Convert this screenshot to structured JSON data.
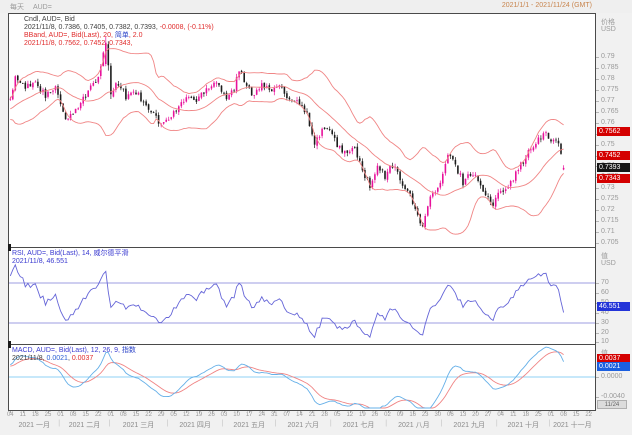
{
  "topbar": {
    "interval": "每天",
    "instrument": "AUD=",
    "date_range": "2021/1/1 - 2021/11/24 (GMT)"
  },
  "colors": {
    "up": "#e8119b",
    "down": "#1c1c1c",
    "band": "#f08585",
    "rsi_line": "#6666d8",
    "rsi_guide": "#9c9ce0",
    "macd_line": "#66b0e8",
    "macd_signal": "#f08585",
    "macd_zero": "#8fd2f5",
    "badge_red": "#d40000",
    "badge_black": "#161616",
    "badge_blue_rsi": "#2334d8",
    "badge_blue_macd": "#1b5fe0"
  },
  "panels": {
    "price": {
      "axis_header": {
        "l1": "价格",
        "l2": "USD"
      },
      "legend": [
        [
          {
            "t": "Cndl, AUD=, Bid",
            "c": "#3d3d3d"
          }
        ],
        [
          {
            "t": "2021/11/8, 0.7386, 0.7405, 0.7382, 0.7393, ",
            "c": "#3d3d3d"
          },
          {
            "t": "-0.0008, (-0.11%)",
            "c": "#e02b2b"
          }
        ],
        [
          {
            "t": "BBand, AUD=, Bid(Last), 20, ",
            "c": "#e02b2b"
          },
          {
            "t": "简单",
            "c": "#2b43c8"
          },
          {
            "t": ", 2.0",
            "c": "#e02b2b"
          }
        ],
        [
          {
            "t": "2021/11/8, 0.7562, 0.7452, 0.7343,",
            "c": "#e02b2b"
          }
        ]
      ],
      "ticks": [
        "0.79",
        "0.785",
        "0.78",
        "0.775",
        "0.77",
        "0.765",
        "0.76",
        "0.755",
        "0.75",
        "0.745",
        "0.74",
        "0.735",
        "0.73",
        "0.725",
        "0.72",
        "0.715",
        "0.71",
        "0.705"
      ],
      "badges": [
        {
          "label": "0.7562",
          "value": 0.7562,
          "bg": "#d40000",
          "name": "bband-upper-badge"
        },
        {
          "label": "0.7452",
          "value": 0.7452,
          "bg": "#d40000",
          "name": "bband-middle-badge"
        },
        {
          "label": "0.7393",
          "value": 0.7393,
          "bg": "#161616",
          "name": "last-price-badge"
        },
        {
          "label": "0.7343",
          "value": 0.7343,
          "bg": "#d40000",
          "name": "bband-lower-badge"
        }
      ]
    },
    "rsi": {
      "axis_header": {
        "l1": "值",
        "l2": "USD"
      },
      "legend": [
        [
          {
            "t": "RSI, AUD=, Bid(Last), 14, 威尔德平滑",
            "c": "#3a3ad0"
          }
        ],
        [
          {
            "t": "2021/11/8, 46.551",
            "c": "#3a3ad0"
          }
        ]
      ],
      "ticks": [
        "70",
        "60",
        "50",
        "40",
        "30",
        "20",
        "10"
      ],
      "guides": [
        70,
        30
      ],
      "badge": {
        "label": "46.551",
        "value": 46.551,
        "bg": "#2334d8",
        "name": "rsi-value-badge"
      }
    },
    "macd": {
      "axis_header": {
        "l1": "值",
        "l2": "USD"
      },
      "legend": [
        [
          {
            "t": "MACD, AUD=, Bid(Last), 12, 26, 9, ",
            "c": "#3a3ad0"
          },
          {
            "t": "指数",
            "c": "#2b43c8"
          }
        ],
        [
          {
            "t": "2021/11/8, ",
            "c": "#3d3d3d"
          },
          {
            "t": "0.0021",
            "c": "#2b5fd4"
          },
          {
            "t": ", ",
            "c": "#3d3d3d"
          },
          {
            "t": "0.0037",
            "c": "#e02b2b"
          }
        ]
      ],
      "ticks": [
        {
          "t": "0.0000",
          "v": 0
        },
        {
          "t": "-0.0040",
          "v": -0.004
        }
      ],
      "badges": [
        {
          "label": "0.0037",
          "value": 0.0037,
          "bg": "#d40000",
          "name": "macd-signal-badge"
        },
        {
          "label": "0.0021",
          "value": 0.0021,
          "bg": "#1b5fe0",
          "name": "macd-value-badge"
        }
      ]
    }
  },
  "x_axis": {
    "end_badge": "11/24",
    "months": [
      {
        "label": "2021 一月",
        "start": 0,
        "count": 20,
        "days": [
          [
            "04",
            0
          ],
          [
            "11",
            5
          ],
          [
            "18",
            10
          ],
          [
            "25",
            15
          ]
        ]
      },
      {
        "label": "2021 二月",
        "start": 20,
        "count": 20,
        "days": [
          [
            "01",
            0
          ],
          [
            "08",
            5
          ],
          [
            "15",
            10
          ],
          [
            "22",
            15
          ]
        ]
      },
      {
        "label": "2021 三月",
        "start": 40,
        "count": 23,
        "days": [
          [
            "01",
            0
          ],
          [
            "08",
            5
          ],
          [
            "15",
            10
          ],
          [
            "22",
            15
          ],
          [
            "29",
            20
          ]
        ]
      },
      {
        "label": "2021 四月",
        "start": 63,
        "count": 22,
        "days": [
          [
            "05",
            2
          ],
          [
            "12",
            7
          ],
          [
            "19",
            12
          ],
          [
            "26",
            17
          ]
        ]
      },
      {
        "label": "2021 五月",
        "start": 85,
        "count": 21,
        "days": [
          [
            "03",
            0
          ],
          [
            "10",
            5
          ],
          [
            "17",
            10
          ],
          [
            "24",
            15
          ],
          [
            "31",
            20
          ]
        ]
      },
      {
        "label": "2021 六月",
        "start": 106,
        "count": 22,
        "days": [
          [
            "07",
            4
          ],
          [
            "14",
            9
          ],
          [
            "21",
            14
          ],
          [
            "28",
            19
          ]
        ]
      },
      {
        "label": "2021 七月",
        "start": 128,
        "count": 22,
        "days": [
          [
            "05",
            2
          ],
          [
            "12",
            7
          ],
          [
            "19",
            12
          ],
          [
            "26",
            17
          ]
        ]
      },
      {
        "label": "2021 八月",
        "start": 150,
        "count": 22,
        "days": [
          [
            "02",
            0
          ],
          [
            "09",
            5
          ],
          [
            "16",
            10
          ],
          [
            "23",
            15
          ],
          [
            "30",
            20
          ]
        ]
      },
      {
        "label": "2021 九月",
        "start": 172,
        "count": 22,
        "days": [
          [
            "06",
            3
          ],
          [
            "13",
            8
          ],
          [
            "20",
            13
          ],
          [
            "27",
            18
          ]
        ]
      },
      {
        "label": "2021 十月",
        "start": 194,
        "count": 21,
        "days": [
          [
            "04",
            1
          ],
          [
            "11",
            6
          ],
          [
            "18",
            11
          ],
          [
            "25",
            16
          ]
        ]
      },
      {
        "label": "2021 十一月",
        "start": 215,
        "count": 18,
        "days": [
          [
            "01",
            0
          ],
          [
            "08",
            5
          ],
          [
            "15",
            10
          ],
          [
            "22",
            15
          ]
        ]
      }
    ]
  },
  "chart_data": [
    {
      "type": "candlestick",
      "name": "Cndl, AUD=, Bid",
      "interval": "daily",
      "x_range": [
        "2021/1/1",
        "2021/11/24 (GMT)"
      ],
      "ylabel": "价格 USD",
      "ylim": [
        0.703,
        0.81
      ],
      "last_bar": {
        "date": "2021/11/8",
        "open": 0.7386,
        "high": 0.7405,
        "low": 0.7382,
        "close": 0.7393,
        "change": -0.0008,
        "change_pct": "-0.11%"
      },
      "overlay": {
        "name": "BBand",
        "source": "Bid(Last)",
        "period": 20,
        "ma_type": "简单",
        "stdev": 2.0,
        "last_upper": 0.7562,
        "last_middle": 0.7452,
        "last_lower": 0.7343
      },
      "close_anchors": [
        [
          0,
          0.77
        ],
        [
          2,
          0.7805
        ],
        [
          6,
          0.776
        ],
        [
          10,
          0.779
        ],
        [
          14,
          0.772
        ],
        [
          18,
          0.7755
        ],
        [
          21,
          0.7645
        ],
        [
          23,
          0.7605
        ],
        [
          27,
          0.768
        ],
        [
          31,
          0.7745
        ],
        [
          35,
          0.78
        ],
        [
          38,
          0.7965
        ],
        [
          39,
          0.786
        ],
        [
          40,
          0.773
        ],
        [
          43,
          0.7785
        ],
        [
          46,
          0.7715
        ],
        [
          49,
          0.775
        ],
        [
          53,
          0.77
        ],
        [
          57,
          0.764
        ],
        [
          60,
          0.759
        ],
        [
          63,
          0.7615
        ],
        [
          66,
          0.7655
        ],
        [
          70,
          0.772
        ],
        [
          74,
          0.77
        ],
        [
          78,
          0.776
        ],
        [
          82,
          0.779
        ],
        [
          86,
          0.7715
        ],
        [
          89,
          0.7755
        ],
        [
          91,
          0.784
        ],
        [
          94,
          0.776
        ],
        [
          97,
          0.773
        ],
        [
          100,
          0.7785
        ],
        [
          103,
          0.774
        ],
        [
          106,
          0.7765
        ],
        [
          109,
          0.7735
        ],
        [
          113,
          0.77
        ],
        [
          116,
          0.769
        ],
        [
          119,
          0.76
        ],
        [
          121,
          0.7495
        ],
        [
          124,
          0.7575
        ],
        [
          127,
          0.7555
        ],
        [
          130,
          0.75
        ],
        [
          134,
          0.7455
        ],
        [
          137,
          0.7485
        ],
        [
          140,
          0.7385
        ],
        [
          143,
          0.73
        ],
        [
          146,
          0.7395
        ],
        [
          149,
          0.7355
        ],
        [
          152,
          0.7405
        ],
        [
          155,
          0.7345
        ],
        [
          158,
          0.729
        ],
        [
          161,
          0.72
        ],
        [
          164,
          0.713
        ],
        [
          167,
          0.7255
        ],
        [
          170,
          0.73
        ],
        [
          172,
          0.7355
        ],
        [
          174,
          0.7455
        ],
        [
          177,
          0.7405
        ],
        [
          180,
          0.733
        ],
        [
          183,
          0.737
        ],
        [
          186,
          0.7345
        ],
        [
          189,
          0.7265
        ],
        [
          192,
          0.7225
        ],
        [
          195,
          0.729
        ],
        [
          198,
          0.732
        ],
        [
          201,
          0.7365
        ],
        [
          204,
          0.743
        ],
        [
          207,
          0.7475
        ],
        [
          210,
          0.752
        ],
        [
          213,
          0.755
        ],
        [
          215,
          0.7515
        ],
        [
          217,
          0.7535
        ],
        [
          219,
          0.7455
        ],
        [
          220,
          0.7393
        ]
      ]
    },
    {
      "type": "line",
      "name": "RSI",
      "source": "Bid(Last)",
      "period": 14,
      "smoothing": "威尔德平滑",
      "last_value": 46.551,
      "guides": [
        70,
        30
      ],
      "ylim": [
        0,
        100
      ],
      "ticks": [
        70,
        60,
        50,
        40,
        30,
        20,
        10
      ]
    },
    {
      "type": "line",
      "name": "MACD",
      "source": "Bid(Last)",
      "fast": 12,
      "slow": 26,
      "signal_period": 9,
      "ma_type": "指数",
      "last_macd": 0.0021,
      "last_signal": 0.0037,
      "ticks": [
        0.0,
        -0.004
      ]
    }
  ]
}
